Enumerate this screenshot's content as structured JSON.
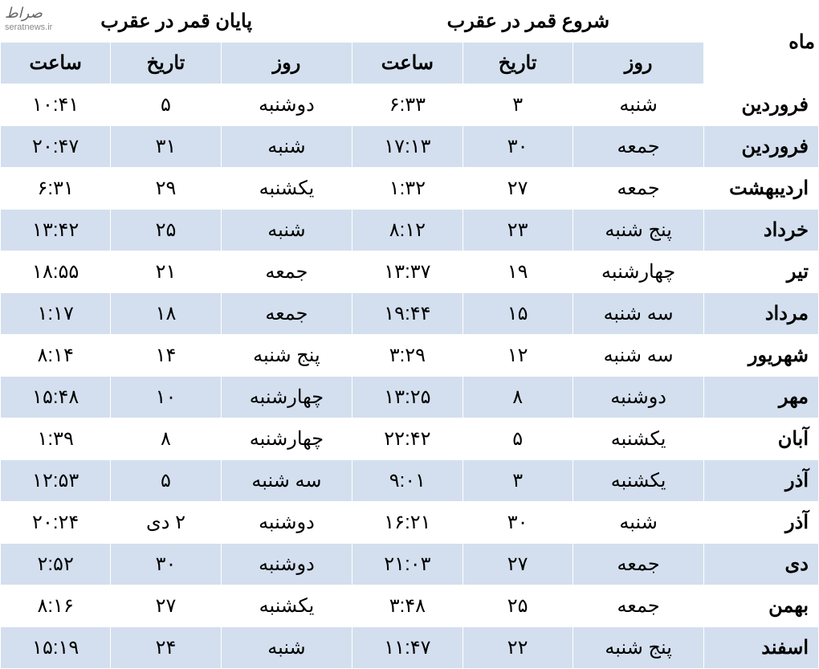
{
  "watermark": {
    "main": "صراط",
    "sub": "seratnews.ir"
  },
  "headers": {
    "month": "ماه",
    "start": "شروع قمر در عقرب",
    "end": "پایان قمر در عقرب",
    "day": "روز",
    "date": "تاریخ",
    "time": "ساعت"
  },
  "colors": {
    "row_odd": "#d3dfee",
    "row_even": "#ffffff",
    "border": "#ffffff"
  },
  "typography": {
    "header_fontsize": 28,
    "subheader_fontsize": 26,
    "cell_fontsize": 24,
    "font_family": "Tahoma"
  },
  "table": {
    "type": "table",
    "columns": [
      "ماه",
      "روز",
      "تاریخ",
      "ساعت",
      "روز",
      "تاریخ",
      "ساعت"
    ],
    "rows": [
      {
        "month": "فروردین",
        "start_day": "شنبه",
        "start_date": "۳",
        "start_time": "۶:۳۳",
        "end_day": "دوشنبه",
        "end_date": "۵",
        "end_time": "۱۰:۴۱"
      },
      {
        "month": "فروردین",
        "start_day": "جمعه",
        "start_date": "۳۰",
        "start_time": "۱۷:۱۳",
        "end_day": "شنبه",
        "end_date": "۳۱",
        "end_time": "۲۰:۴۷"
      },
      {
        "month": "اردیبهشت",
        "start_day": "جمعه",
        "start_date": "۲۷",
        "start_time": "۱:۳۲",
        "end_day": "یکشنبه",
        "end_date": "۲۹",
        "end_time": "۶:۳۱"
      },
      {
        "month": "خرداد",
        "start_day": "پنج شنبه",
        "start_date": "۲۳",
        "start_time": "۸:۱۲",
        "end_day": "شنبه",
        "end_date": "۲۵",
        "end_time": "۱۳:۴۲"
      },
      {
        "month": "تیر",
        "start_day": "چهارشنبه",
        "start_date": "۱۹",
        "start_time": "۱۳:۳۷",
        "end_day": "جمعه",
        "end_date": "۲۱",
        "end_time": "۱۸:۵۵"
      },
      {
        "month": "مرداد",
        "start_day": "سه شنبه",
        "start_date": "۱۵",
        "start_time": "۱۹:۴۴",
        "end_day": "جمعه",
        "end_date": "۱۸",
        "end_time": "۱:۱۷"
      },
      {
        "month": "شهریور",
        "start_day": "سه شنبه",
        "start_date": "۱۲",
        "start_time": "۳:۲۹",
        "end_day": "پنج شنبه",
        "end_date": "۱۴",
        "end_time": "۸:۱۴"
      },
      {
        "month": "مهر",
        "start_day": "دوشنبه",
        "start_date": "۸",
        "start_time": "۱۳:۲۵",
        "end_day": "چهارشنبه",
        "end_date": "۱۰",
        "end_time": "۱۵:۴۸"
      },
      {
        "month": "آبان",
        "start_day": "یکشنبه",
        "start_date": "۵",
        "start_time": "۲۲:۴۲",
        "end_day": "چهارشنبه",
        "end_date": "۸",
        "end_time": "۱:۳۹"
      },
      {
        "month": "آذر",
        "start_day": "یکشنبه",
        "start_date": "۳",
        "start_time": "۹:۰۱",
        "end_day": "سه شنبه",
        "end_date": "۵",
        "end_time": "۱۲:۵۳"
      },
      {
        "month": "آذر",
        "start_day": "شنبه",
        "start_date": "۳۰",
        "start_time": "۱۶:۲۱",
        "end_day": "دوشنبه",
        "end_date": "۲ دی",
        "end_time": "۲۰:۲۴"
      },
      {
        "month": "دی",
        "start_day": "جمعه",
        "start_date": "۲۷",
        "start_time": "۲۱:۰۳",
        "end_day": "دوشنبه",
        "end_date": "۳۰",
        "end_time": "۲:۵۲"
      },
      {
        "month": "بهمن",
        "start_day": "جمعه",
        "start_date": "۲۵",
        "start_time": "۳:۴۸",
        "end_day": "یکشنبه",
        "end_date": "۲۷",
        "end_time": "۸:۱۶"
      },
      {
        "month": "اسفند",
        "start_day": "پنج شنبه",
        "start_date": "۲۲",
        "start_time": "۱۱:۴۷",
        "end_day": "شنبه",
        "end_date": "۲۴",
        "end_time": "۱۵:۱۹"
      }
    ]
  }
}
